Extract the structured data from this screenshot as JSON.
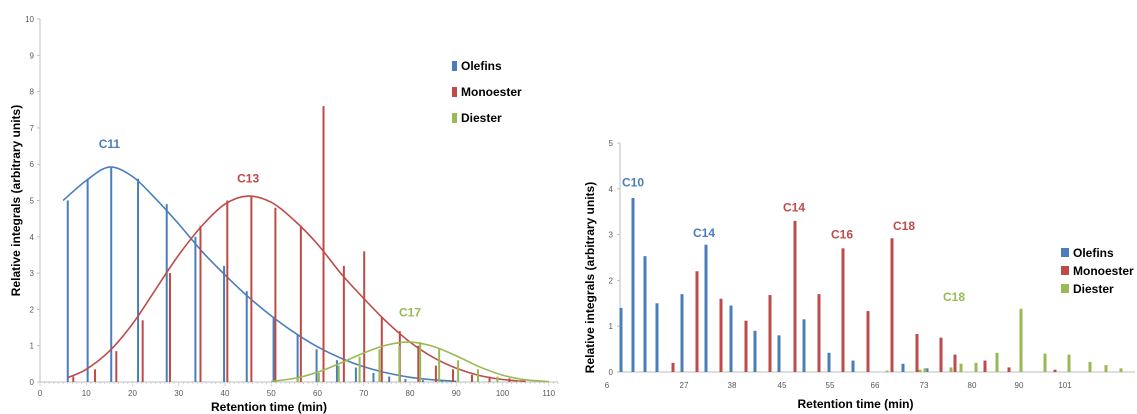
{
  "chart_data": [
    {
      "type": "bar",
      "xlabel": "Retention time (min)",
      "ylabel": "Relative integrals (arbitrary units)",
      "xlim": [
        0,
        112
      ],
      "ylim": [
        0,
        10
      ],
      "x_ticks": [
        0,
        10,
        20,
        30,
        40,
        50,
        60,
        70,
        80,
        90,
        100,
        110
      ],
      "y_ticks": [
        0,
        1,
        2,
        3,
        4,
        5,
        6,
        7,
        8,
        9,
        10
      ],
      "grid": false,
      "legend_position": "top-right",
      "series": [
        {
          "name": "Olefins",
          "color": "#4a7ebb",
          "points": [
            [
              6,
              5.0
            ],
            [
              10.3,
              5.6
            ],
            [
              15.4,
              5.9
            ],
            [
              21.2,
              5.6
            ],
            [
              27.4,
              4.9
            ],
            [
              33.6,
              4.0
            ],
            [
              39.8,
              3.2
            ],
            [
              44.7,
              2.5
            ],
            [
              50.5,
              1.8
            ],
            [
              55.7,
              1.3
            ],
            [
              59.8,
              0.9
            ],
            [
              64.2,
              0.6
            ],
            [
              68.3,
              0.4
            ],
            [
              72.1,
              0.25
            ],
            [
              75.5,
              0.15
            ],
            [
              79,
              0.08
            ],
            [
              82.8,
              0.05
            ],
            [
              86.9,
              0.03
            ]
          ],
          "fit": [
            [
              5,
              5.0
            ],
            [
              10,
              5.55
            ],
            [
              15,
              5.92
            ],
            [
              20,
              5.66
            ],
            [
              25,
              5.05
            ],
            [
              30,
              4.35
            ],
            [
              35,
              3.6
            ],
            [
              40,
              2.95
            ],
            [
              45,
              2.35
            ],
            [
              50,
              1.82
            ],
            [
              55,
              1.36
            ],
            [
              60,
              0.97
            ],
            [
              65,
              0.66
            ],
            [
              70,
              0.42
            ],
            [
              75,
              0.25
            ],
            [
              80,
              0.13
            ],
            [
              85,
              0.06
            ],
            [
              90,
              0.02
            ]
          ]
        },
        {
          "name": "Monoester",
          "color": "#be4b48",
          "points": [
            [
              7.2,
              0.15
            ],
            [
              11.9,
              0.35
            ],
            [
              16.5,
              0.85
            ],
            [
              22.2,
              1.7
            ],
            [
              28.1,
              3.0
            ],
            [
              34.7,
              4.3
            ],
            [
              40.5,
              5.0
            ],
            [
              45.7,
              5.1
            ],
            [
              50.9,
              4.8
            ],
            [
              56.4,
              4.3
            ],
            [
              61.3,
              7.6
            ],
            [
              65.7,
              3.2
            ],
            [
              70.1,
              3.6
            ],
            [
              73.9,
              1.8
            ],
            [
              77.8,
              1.4
            ],
            [
              81.8,
              1.0
            ],
            [
              85.6,
              0.45
            ],
            [
              89.3,
              0.35
            ],
            [
              93.4,
              0.2
            ],
            [
              97.2,
              0.15
            ],
            [
              101.5,
              0.1
            ]
          ],
          "fit": [
            [
              6,
              0.12
            ],
            [
              10,
              0.35
            ],
            [
              15,
              0.85
            ],
            [
              20,
              1.6
            ],
            [
              25,
              2.55
            ],
            [
              30,
              3.5
            ],
            [
              35,
              4.3
            ],
            [
              40,
              4.9
            ],
            [
              45,
              5.12
            ],
            [
              50,
              4.95
            ],
            [
              55,
              4.45
            ],
            [
              60,
              3.8
            ],
            [
              65,
              3.0
            ],
            [
              70,
              2.3
            ],
            [
              75,
              1.65
            ],
            [
              80,
              1.1
            ],
            [
              85,
              0.68
            ],
            [
              90,
              0.38
            ],
            [
              95,
              0.18
            ],
            [
              100,
              0.07
            ],
            [
              105,
              0.02
            ]
          ]
        },
        {
          "name": "Diester",
          "color": "#98b954",
          "points": [
            [
              55.7,
              0.12
            ],
            [
              60.3,
              0.25
            ],
            [
              64.6,
              0.45
            ],
            [
              69.1,
              0.7
            ],
            [
              73.4,
              0.9
            ],
            [
              77.7,
              1.0
            ],
            [
              82.2,
              1.1
            ],
            [
              86.3,
              0.9
            ],
            [
              90.4,
              0.6
            ],
            [
              94.7,
              0.35
            ],
            [
              98.9,
              0.15
            ],
            [
              103.5,
              0.05
            ]
          ],
          "fit": [
            [
              50,
              0.02
            ],
            [
              55,
              0.1
            ],
            [
              60,
              0.27
            ],
            [
              65,
              0.52
            ],
            [
              70,
              0.8
            ],
            [
              75,
              1.02
            ],
            [
              80,
              1.1
            ],
            [
              85,
              0.98
            ],
            [
              90,
              0.72
            ],
            [
              95,
              0.42
            ],
            [
              100,
              0.19
            ],
            [
              105,
              0.06
            ],
            [
              110,
              0.01
            ]
          ]
        }
      ],
      "annotations": [
        {
          "text": "C11",
          "series": "Olefins",
          "x": 15,
          "y": 6.45
        },
        {
          "text": "C13",
          "series": "Monoester",
          "x": 45,
          "y": 5.5
        },
        {
          "text": "C17",
          "series": "Diester",
          "x": 80,
          "y": 1.8
        }
      ]
    },
    {
      "type": "bar",
      "xlabel": "Retention time (min)",
      "ylabel": "Relative integrals (arbitrary units)",
      "ylim": [
        0,
        5
      ],
      "x_tick_labels": [
        "6",
        "27",
        "38",
        "45",
        "55",
        "66",
        "73",
        "80",
        "90",
        "101"
      ],
      "y_ticks": [
        0,
        1,
        2,
        3,
        4,
        5
      ],
      "grid": false,
      "legend_position": "right",
      "series": [
        {
          "name": "Olefins",
          "color": "#4a7ebb",
          "values": [
            1.4,
            3.8,
            2.53,
            1.5,
            1.7,
            2.78,
            1.45,
            0.9,
            0.8,
            1.15,
            0.42,
            0.25,
            0.18,
            0.08
          ]
        },
        {
          "name": "Monoester",
          "color": "#be4b48",
          "values": [
            0.2,
            2.2,
            1.6,
            1.12,
            1.68,
            3.3,
            1.7,
            2.7,
            1.33,
            2.92,
            0.83,
            0.75,
            0.38,
            0.25,
            0.1,
            0.05
          ]
        },
        {
          "name": "Diester",
          "color": "#98b954",
          "values": [
            0.03,
            0.05,
            0.08,
            0.1,
            0.18,
            0.2,
            0.42,
            1.38,
            0.4,
            0.38,
            0.22,
            0.15,
            0.08
          ]
        }
      ],
      "annotations": [
        {
          "text": "C10",
          "series": "Olefins",
          "x": "6",
          "y": 4.05
        },
        {
          "text": "C14",
          "series": "Olefins",
          "x": "27",
          "y": 2.95
        },
        {
          "text": "C14",
          "series": "Monoester",
          "x": "45",
          "y": 3.5
        },
        {
          "text": "C16",
          "series": "Monoester",
          "x": "55",
          "y": 2.92
        },
        {
          "text": "C18",
          "series": "Monoester",
          "x": "66",
          "y": 3.1
        },
        {
          "text": "C18",
          "series": "Diester",
          "x": "80",
          "y": 1.55
        }
      ]
    }
  ]
}
